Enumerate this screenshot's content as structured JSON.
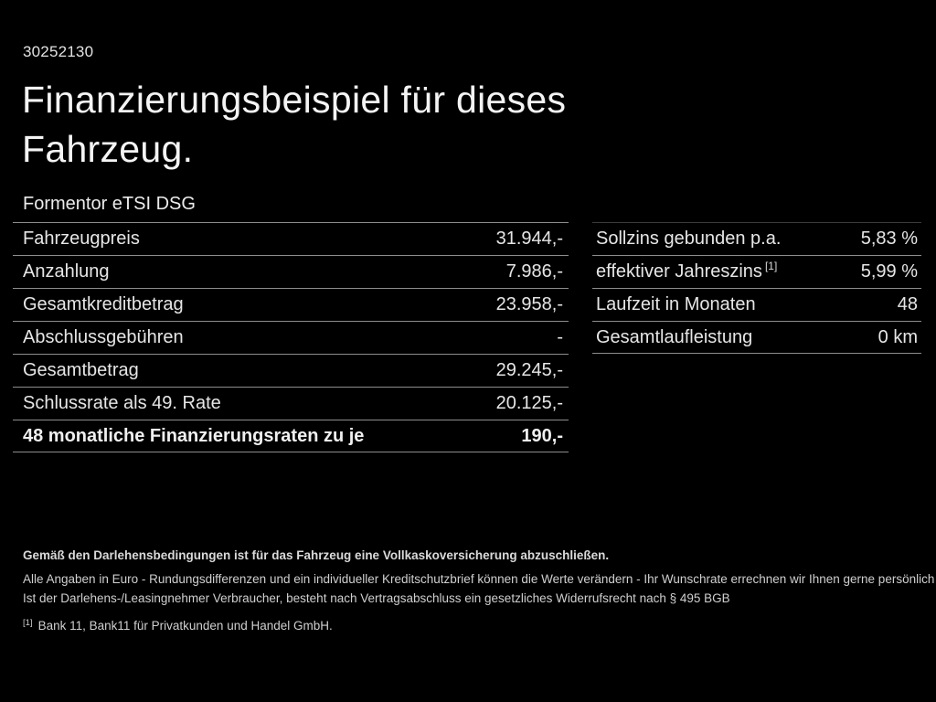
{
  "page": {
    "doc_id": "30252130",
    "title_line1": "Finanzierungsbeispiel für dieses",
    "title_line2": "Fahrzeug.",
    "model": "Formentor eTSI DSG"
  },
  "finance_table": {
    "rows": [
      {
        "label": "Fahrzeugpreis",
        "value": "31.944,-"
      },
      {
        "label": "Anzahlung",
        "value": "7.986,-"
      },
      {
        "label": "Gesamtkreditbetrag",
        "value": "23.958,-"
      },
      {
        "label": "Abschlussgebühren",
        "value": "-"
      },
      {
        "label": "Gesamtbetrag",
        "value": "29.245,-"
      },
      {
        "label": "Schlussrate als 49. Rate",
        "value": "20.125,-"
      },
      {
        "label": "48 monatliche Finanzierungsraten zu je",
        "value": "190,-"
      }
    ]
  },
  "conditions_table": {
    "rows": [
      {
        "label": "Sollzins gebunden p.a.",
        "value": "5,83 %"
      },
      {
        "label": "effektiver Jahreszins",
        "footnote": "[1]",
        "value": "5,99 %"
      },
      {
        "label": "Laufzeit in Monaten",
        "value": "48"
      },
      {
        "label": "Gesamtlaufleistung",
        "value": "0 km"
      }
    ]
  },
  "footer": {
    "line1": "Gemäß den Darlehensbedingungen ist für das Fahrzeug eine Vollkaskoversicherung abzuschließen.",
    "line2": "Alle Angaben in Euro - Rundungsdifferenzen und ein individueller Kreditschutzbrief können die Werte verändern - Ihr Wunschrate errechnen wir Ihnen gerne persönlich",
    "line3": "Ist der Darlehens-/Leasingnehmer Verbraucher, besteht nach Vertragsabschluss ein gesetzliches Widerrufsrecht nach § 495 BGB",
    "footnote_marker": "[1]",
    "footnote_text": "Bank 11, Bank11 für Privatkunden und Handel GmbH."
  },
  "colors": {
    "background": "#000000",
    "text_primary": "#f4f4f4",
    "text_table": "#e6e6e6",
    "text_footer": "#cfcfcf",
    "separator": "#8d8d8d"
  }
}
